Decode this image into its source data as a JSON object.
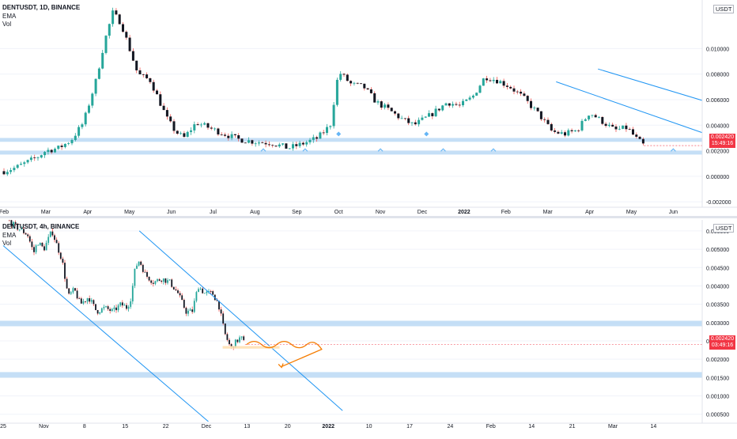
{
  "top_pane": {
    "title": "DENTUSDT, 1D, BINANCE",
    "indicators": [
      "EMA",
      "Vol"
    ],
    "currency": "USDT",
    "current_price": "0.002420",
    "countdown": "15:49:16"
  },
  "bottom_pane": {
    "title": "DENTUSDT, 4h, BINANCE",
    "indicators": [
      "EMA",
      "Vol"
    ],
    "currency": "USDT",
    "current_price": "0.002420",
    "countdown": "03:49:16"
  },
  "colors": {
    "up": "#26a69a",
    "down": "#ef5350",
    "trendline": "#2196f3",
    "zone": "#bbd9f5",
    "projection": "#f57c00",
    "support_marker": "#64b5f6",
    "price_tag": "#f23645"
  },
  "chart_data": [
    {
      "type": "candlestick",
      "title": "DENTUSDT, 1D, BINANCE",
      "x_ticks": [
        "Feb",
        "Mar",
        "Apr",
        "May",
        "Jun",
        "Jul",
        "Aug",
        "Sep",
        "Oct",
        "Nov",
        "Dec",
        "2022",
        "Feb",
        "Mar",
        "Apr",
        "May",
        "Jun"
      ],
      "y_ticks": [
        0.01,
        0.008,
        0.006,
        0.004,
        0.002,
        0.0,
        -0.002
      ],
      "ylim": [
        -0.0023,
        0.0138
      ],
      "close_path": [
        {
          "t": 0.0,
          "p": 0.0004
        },
        {
          "t": 0.3,
          "p": 0.0007
        },
        {
          "t": 0.8,
          "p": 0.0015
        },
        {
          "t": 1.0,
          "p": 0.002
        },
        {
          "t": 1.3,
          "p": 0.0022
        },
        {
          "t": 1.6,
          "p": 0.0028
        },
        {
          "t": 1.9,
          "p": 0.0042
        },
        {
          "t": 2.2,
          "p": 0.0075
        },
        {
          "t": 2.4,
          "p": 0.0105
        },
        {
          "t": 2.6,
          "p": 0.0128
        },
        {
          "t": 2.8,
          "p": 0.012
        },
        {
          "t": 3.0,
          "p": 0.01
        },
        {
          "t": 3.2,
          "p": 0.008
        },
        {
          "t": 3.5,
          "p": 0.0075
        },
        {
          "t": 3.7,
          "p": 0.006
        },
        {
          "t": 3.9,
          "p": 0.0045
        },
        {
          "t": 4.1,
          "p": 0.0035
        },
        {
          "t": 4.3,
          "p": 0.003
        },
        {
          "t": 4.6,
          "p": 0.0042
        },
        {
          "t": 4.9,
          "p": 0.0038
        },
        {
          "t": 5.2,
          "p": 0.0034
        },
        {
          "t": 5.6,
          "p": 0.0029
        },
        {
          "t": 6.0,
          "p": 0.0027
        },
        {
          "t": 6.4,
          "p": 0.0026
        },
        {
          "t": 6.8,
          "p": 0.0022
        },
        {
          "t": 7.1,
          "p": 0.0025
        },
        {
          "t": 7.5,
          "p": 0.003
        },
        {
          "t": 7.8,
          "p": 0.004
        },
        {
          "t": 8.0,
          "p": 0.0082
        },
        {
          "t": 8.3,
          "p": 0.0072
        },
        {
          "t": 8.6,
          "p": 0.007
        },
        {
          "t": 8.9,
          "p": 0.0058
        },
        {
          "t": 9.2,
          "p": 0.0052
        },
        {
          "t": 9.5,
          "p": 0.0045
        },
        {
          "t": 9.8,
          "p": 0.004
        },
        {
          "t": 10.2,
          "p": 0.0048
        },
        {
          "t": 10.6,
          "p": 0.0058
        },
        {
          "t": 10.9,
          "p": 0.0055
        },
        {
          "t": 11.2,
          "p": 0.0062
        },
        {
          "t": 11.5,
          "p": 0.0078
        },
        {
          "t": 11.8,
          "p": 0.0075
        },
        {
          "t": 12.1,
          "p": 0.007
        },
        {
          "t": 12.4,
          "p": 0.0062
        },
        {
          "t": 12.8,
          "p": 0.0048
        },
        {
          "t": 13.1,
          "p": 0.0035
        },
        {
          "t": 13.4,
          "p": 0.0033
        },
        {
          "t": 13.7,
          "p": 0.0036
        },
        {
          "t": 14.0,
          "p": 0.005
        },
        {
          "t": 14.3,
          "p": 0.0043
        },
        {
          "t": 14.6,
          "p": 0.0036
        },
        {
          "t": 14.9,
          "p": 0.0038
        },
        {
          "t": 15.1,
          "p": 0.003
        },
        {
          "t": 15.3,
          "p": 0.0024
        }
      ],
      "support_zones": [
        {
          "from": 0.0027,
          "to": 0.003
        },
        {
          "from": 0.0017,
          "to": 0.002
        }
      ],
      "channel_lines": [
        {
          "t1": 14.2,
          "p1": 0.0084,
          "t2": 22.1,
          "p2": 0.0006
        },
        {
          "t1": 13.2,
          "p1": 0.0074,
          "t2": 21.0,
          "p2": -0.0015
        }
      ],
      "support_markers_t": [
        6.2,
        7.2,
        9.0,
        10.5,
        11.7,
        16.0,
        17.0
      ],
      "resistance_markers_t": [
        8.0,
        10.1,
        19.4
      ]
    },
    {
      "type": "candlestick",
      "title": "DENTUSDT, 4h, BINANCE",
      "x_ticks": [
        "25",
        "Nov",
        "8",
        "15",
        "22",
        "Dec",
        "13",
        "20",
        "2022",
        "10",
        "17",
        "24",
        "Feb",
        "14",
        "21",
        "Mar",
        "14"
      ],
      "y_ticks": [
        0.0055,
        0.005,
        0.0045,
        0.004,
        0.0035,
        0.003,
        0.0025,
        0.002,
        0.0015,
        0.001,
        0.0005
      ],
      "ylim": [
        0.0003,
        0.0058
      ],
      "close_path": [
        {
          "t": 0.0,
          "p": 0.006
        },
        {
          "t": 0.2,
          "p": 0.0057
        },
        {
          "t": 0.6,
          "p": 0.0054
        },
        {
          "t": 0.75,
          "p": 0.0049
        },
        {
          "t": 0.85,
          "p": 0.0052
        },
        {
          "t": 1.0,
          "p": 0.005
        },
        {
          "t": 1.2,
          "p": 0.0055
        },
        {
          "t": 1.45,
          "p": 0.0047
        },
        {
          "t": 1.6,
          "p": 0.0037
        },
        {
          "t": 1.75,
          "p": 0.0039
        },
        {
          "t": 1.9,
          "p": 0.0035
        },
        {
          "t": 2.1,
          "p": 0.0037
        },
        {
          "t": 2.3,
          "p": 0.0033
        },
        {
          "t": 2.5,
          "p": 0.0034
        },
        {
          "t": 2.7,
          "p": 0.0033
        },
        {
          "t": 2.9,
          "p": 0.0035
        },
        {
          "t": 3.05,
          "p": 0.0034
        },
        {
          "t": 3.15,
          "p": 0.0037
        },
        {
          "t": 3.25,
          "p": 0.0045
        },
        {
          "t": 3.35,
          "p": 0.0047
        },
        {
          "t": 3.5,
          "p": 0.0043
        },
        {
          "t": 3.7,
          "p": 0.0041
        },
        {
          "t": 3.9,
          "p": 0.0042
        },
        {
          "t": 4.1,
          "p": 0.0041
        },
        {
          "t": 4.3,
          "p": 0.0038
        },
        {
          "t": 4.5,
          "p": 0.0033
        },
        {
          "t": 4.65,
          "p": 0.0033
        },
        {
          "t": 4.8,
          "p": 0.004
        },
        {
          "t": 4.95,
          "p": 0.0038
        },
        {
          "t": 5.15,
          "p": 0.0038
        },
        {
          "t": 5.3,
          "p": 0.0035
        },
        {
          "t": 5.45,
          "p": 0.0027
        },
        {
          "t": 5.6,
          "p": 0.0023
        },
        {
          "t": 5.75,
          "p": 0.0025
        },
        {
          "t": 5.85,
          "p": 0.0026
        },
        {
          "t": 5.95,
          "p": 0.0024
        }
      ],
      "support_zones": [
        {
          "from": 0.0029,
          "to": 0.00305
        },
        {
          "from": 0.0015,
          "to": 0.00165
        }
      ],
      "channel_lines": [
        {
          "t1": 3.35,
          "p1": 0.0055,
          "t2": 8.35,
          "p2": 0.0006
        },
        {
          "t1": 0.0,
          "p1": 0.0051,
          "t2": 5.05,
          "p2": 0.0003
        }
      ],
      "target_zone": {
        "t1": 5.4,
        "t2": 6.8,
        "from": 0.00229,
        "to": 0.00236
      },
      "projection_end": {
        "t": 6.85,
        "p": 0.0018
      }
    }
  ]
}
